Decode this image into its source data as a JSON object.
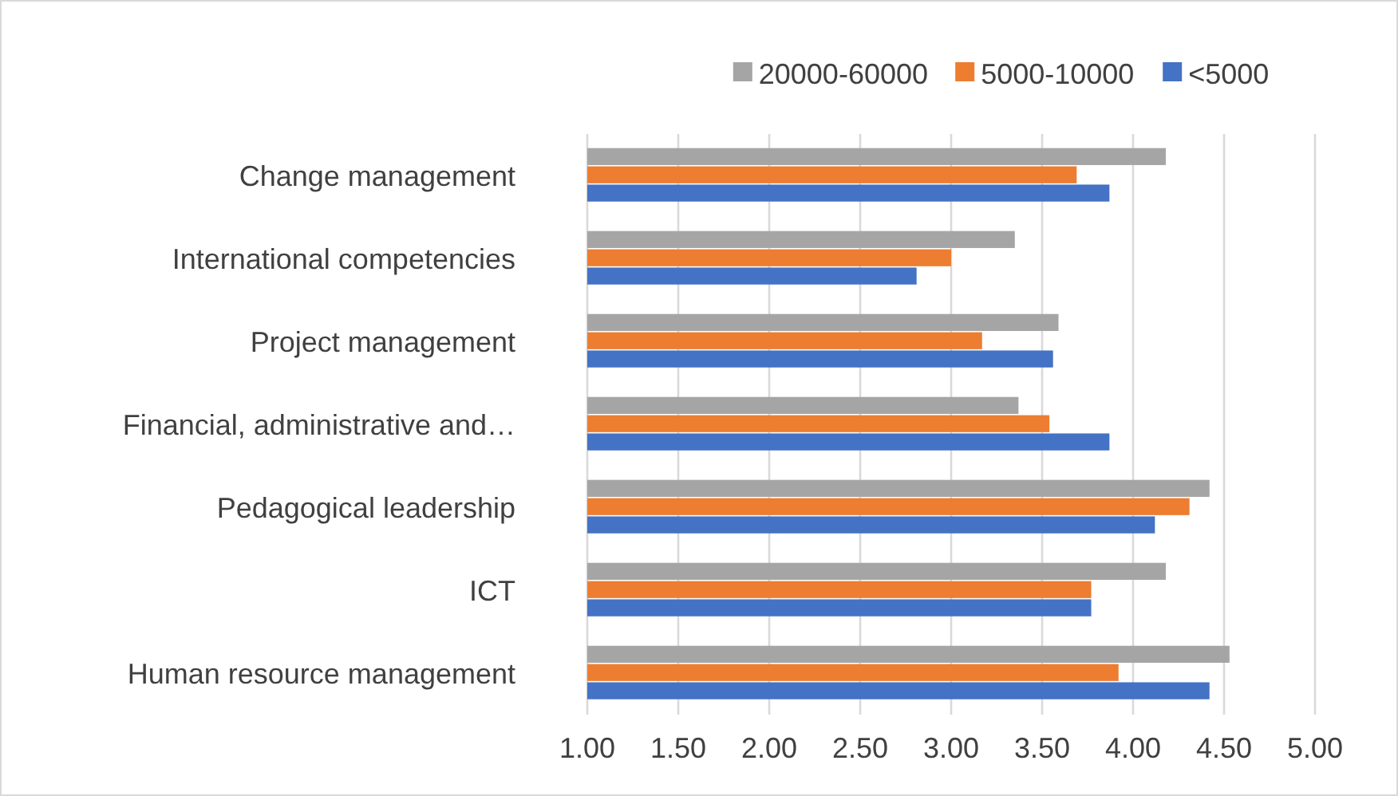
{
  "chart_data": {
    "type": "bar",
    "orientation": "horizontal",
    "categories": [
      "Change management",
      "International competencies",
      "Project management",
      "Financial, administrative and…",
      "Pedagogical leadership",
      "ICT",
      "Human resource management"
    ],
    "series": [
      {
        "name": "20000-60000",
        "color": "#a5a5a5",
        "values": [
          4.18,
          3.35,
          3.59,
          3.37,
          4.42,
          4.18,
          4.53
        ]
      },
      {
        "name": "5000-10000",
        "color": "#ed7d31",
        "values": [
          3.69,
          3.0,
          3.17,
          3.54,
          4.31,
          3.77,
          3.92
        ]
      },
      {
        "name": "<5000",
        "color": "#4472c4",
        "values": [
          3.87,
          2.81,
          3.56,
          3.87,
          4.12,
          3.77,
          4.42
        ]
      }
    ],
    "xlim": [
      1,
      5
    ],
    "xticks": [
      {
        "value": 1,
        "label": "1.00"
      },
      {
        "value": 1.5,
        "label": "1.50"
      },
      {
        "value": 2,
        "label": "2.00"
      },
      {
        "value": 2.5,
        "label": "2.50"
      },
      {
        "value": 3,
        "label": "3.00"
      },
      {
        "value": 3.5,
        "label": "3.50"
      },
      {
        "value": 4,
        "label": "4.00"
      },
      {
        "value": 4.5,
        "label": "4.50"
      },
      {
        "value": 5,
        "label": "5.00"
      }
    ],
    "grid": "x",
    "legend": "top"
  }
}
